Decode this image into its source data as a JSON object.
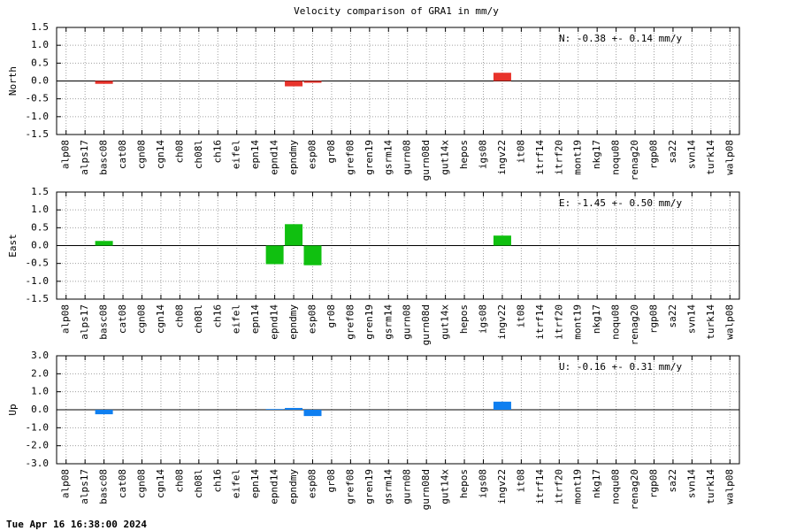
{
  "title": "Velocity comparison of GRA1 in mm/y",
  "footer": "Tue Apr 16 16:38:00 2024",
  "chart_data": [
    {
      "type": "bar",
      "ylabel": "North",
      "annotation": "N:  -0.38 +-  0.14 mm/y",
      "color": "#e8332b",
      "grid": true,
      "categories": [
        "alp08",
        "alps17",
        "basc08",
        "cat08",
        "cgn08",
        "cgn14",
        "ch08",
        "ch08l",
        "ch16",
        "eifel",
        "epn14",
        "epnd14",
        "epndmy",
        "esp08",
        "gr08",
        "gref08",
        "gren19",
        "gsrm14",
        "gurn08",
        "gurn08d",
        "gut14x",
        "hepos",
        "igs08",
        "ingv22",
        "it08",
        "itrf14",
        "itrf20",
        "mont19",
        "nkg17",
        "noqu08",
        "renag20",
        "rgp08",
        "sa22",
        "svn14",
        "turk14",
        "walp08"
      ],
      "values": [
        null,
        null,
        -0.08,
        null,
        null,
        null,
        null,
        null,
        null,
        null,
        null,
        null,
        -0.15,
        -0.05,
        null,
        null,
        null,
        null,
        null,
        null,
        null,
        null,
        null,
        0.23,
        null,
        null,
        null,
        null,
        null,
        null,
        null,
        null,
        null,
        null,
        null,
        null
      ],
      "ylim": [
        -1.5,
        1.5
      ],
      "yticks": [
        1.5,
        {
          "value": 1.0,
          "label": "1.0"
        },
        0.5,
        {
          "value": 0,
          "label": "0.0"
        },
        -0.5,
        {
          "value": -1.0,
          "label": "-1.0"
        },
        -1.5
      ]
    },
    {
      "type": "bar",
      "ylabel": "East",
      "annotation": "E:  -1.45 +-  0.50 mm/y",
      "color": "#10c010",
      "grid": true,
      "categories": [
        "alp08",
        "alps17",
        "basc08",
        "cat08",
        "cgn08",
        "cgn14",
        "ch08",
        "ch08l",
        "ch16",
        "eifel",
        "epn14",
        "epnd14",
        "epndmy",
        "esp08",
        "gr08",
        "gref08",
        "gren19",
        "gsrm14",
        "gurn08",
        "gurn08d",
        "gut14x",
        "hepos",
        "igs08",
        "ingv22",
        "it08",
        "itrf14",
        "itrf20",
        "mont19",
        "nkg17",
        "noqu08",
        "renag20",
        "rgp08",
        "sa22",
        "svn14",
        "turk14",
        "walp08"
      ],
      "values": [
        null,
        null,
        0.13,
        null,
        null,
        null,
        null,
        null,
        null,
        null,
        null,
        -0.52,
        0.6,
        -0.55,
        null,
        null,
        null,
        null,
        null,
        null,
        null,
        null,
        null,
        0.28,
        null,
        null,
        null,
        null,
        null,
        null,
        null,
        null,
        null,
        null,
        null,
        null
      ],
      "ylim": [
        -1.5,
        1.5
      ],
      "yticks": [
        1.5,
        {
          "value": 1.0,
          "label": "1.0"
        },
        0.5,
        {
          "value": 0,
          "label": "0.0"
        },
        -0.5,
        {
          "value": -1.0,
          "label": "-1.0"
        },
        -1.5
      ]
    },
    {
      "type": "bar",
      "ylabel": "Up",
      "annotation": "U:  -0.16 +-  0.31 mm/y",
      "color": "#0f7ff0",
      "grid": true,
      "categories": [
        "alp08",
        "alps17",
        "basc08",
        "cat08",
        "cgn08",
        "cgn14",
        "ch08",
        "ch08l",
        "ch16",
        "eifel",
        "epn14",
        "epnd14",
        "epndmy",
        "esp08",
        "gr08",
        "gref08",
        "gren19",
        "gsrm14",
        "gurn08",
        "gurn08d",
        "gut14x",
        "hepos",
        "igs08",
        "ingv22",
        "it08",
        "itrf14",
        "itrf20",
        "mont19",
        "nkg17",
        "noqu08",
        "renag20",
        "rgp08",
        "sa22",
        "svn14",
        "turk14",
        "walp08"
      ],
      "values": [
        null,
        null,
        -0.25,
        null,
        null,
        null,
        null,
        null,
        null,
        null,
        null,
        0.04,
        0.1,
        -0.35,
        null,
        null,
        null,
        null,
        null,
        null,
        null,
        null,
        null,
        0.45,
        null,
        null,
        null,
        null,
        null,
        null,
        null,
        null,
        null,
        null,
        null,
        null
      ],
      "ylim": [
        -3.0,
        3.0
      ],
      "yticks": [
        {
          "value": 3.0,
          "label": "3.0"
        },
        {
          "value": 2.0,
          "label": "2.0"
        },
        {
          "value": 1.0,
          "label": "1.0"
        },
        {
          "value": 0,
          "label": "0.0"
        },
        {
          "value": -1.0,
          "label": "-1.0"
        },
        {
          "value": -2.0,
          "label": "-2.0"
        },
        {
          "value": -3.0,
          "label": "-3.0"
        }
      ]
    }
  ]
}
